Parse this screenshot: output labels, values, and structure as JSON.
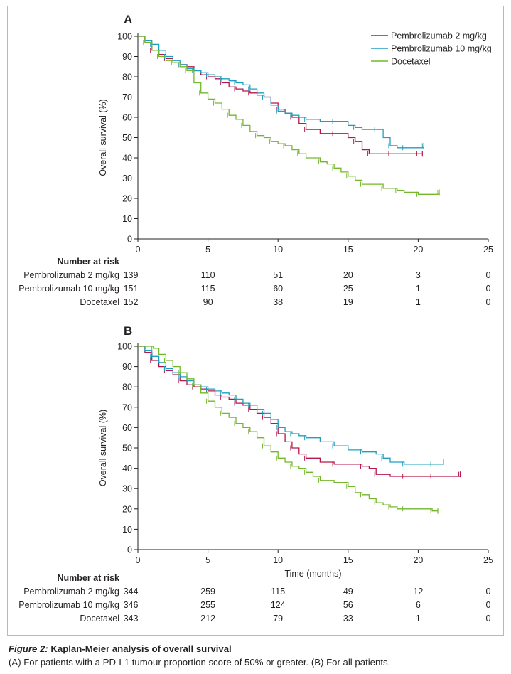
{
  "caption": {
    "label": "Figure 2:",
    "title": "Kaplan-Meier analysis of overall survival",
    "text": "(A) For patients with a PD-L1 tumour proportion score of 50% or greater. (B) For all patients."
  },
  "colors": {
    "pembro2": "#b5174b",
    "pembro10": "#1e9fc2",
    "docetaxel": "#74b72c",
    "axis": "#231f20"
  },
  "chart_data": [
    {
      "type": "line",
      "panel_label": "A",
      "ylabel": "Overall survival (%)",
      "xlabel": "",
      "xlim": [
        0,
        25
      ],
      "ylim": [
        0,
        100
      ],
      "x_ticks": [
        0,
        5,
        10,
        15,
        20,
        25
      ],
      "y_ticks": [
        0,
        10,
        20,
        30,
        40,
        50,
        60,
        70,
        80,
        90,
        100
      ],
      "legend": {
        "placement": "top-right"
      },
      "series": [
        {
          "name": "Pembrolizumab 2 mg/kg",
          "color_key": "pembro2",
          "x": [
            0,
            0.5,
            1,
            1.5,
            2,
            2.5,
            3,
            3.5,
            4,
            4.5,
            5,
            5.5,
            6,
            6.5,
            7,
            7.5,
            8,
            8.5,
            9,
            9.5,
            10,
            10.5,
            11,
            11.5,
            12,
            13,
            14,
            15,
            15.5,
            16,
            16.5,
            17,
            18,
            19,
            20,
            20.3
          ],
          "y": [
            100,
            97,
            93,
            91,
            89,
            87,
            86,
            85,
            83,
            81,
            80,
            79,
            77,
            75,
            74,
            73,
            72,
            71,
            70,
            67,
            64,
            62,
            60,
            57,
            54,
            52,
            52,
            50,
            48,
            44,
            42,
            42,
            42,
            42,
            42,
            42
          ]
        },
        {
          "name": "Pembrolizumab 10 mg/kg",
          "color_key": "pembro10",
          "x": [
            0,
            0.5,
            1,
            1.5,
            2,
            2.5,
            3,
            3.5,
            4,
            4.5,
            5,
            5.5,
            6,
            6.5,
            7,
            7.5,
            8,
            8.5,
            9,
            9.5,
            10,
            10.5,
            11,
            11.5,
            12,
            13,
            14,
            15,
            15.5,
            16,
            17,
            17.5,
            18,
            18.5,
            19,
            20,
            20.4
          ],
          "y": [
            100,
            98,
            96,
            93,
            90,
            88,
            86,
            84,
            83,
            82,
            81,
            80,
            79,
            78,
            77,
            76,
            74,
            72,
            70,
            66,
            63,
            62,
            61,
            60,
            59,
            58,
            58,
            56,
            55,
            54,
            54,
            50,
            46,
            45,
            45,
            45,
            46
          ]
        },
        {
          "name": "Docetaxel",
          "color_key": "docetaxel",
          "x": [
            0,
            0.4,
            0.5,
            1,
            1.5,
            2,
            2.5,
            3,
            3.5,
            4,
            4.5,
            5,
            5.5,
            6,
            6.5,
            7,
            7.5,
            8,
            8.5,
            9,
            9.5,
            10,
            10.5,
            11,
            11.5,
            12,
            13,
            13.5,
            14,
            14.5,
            15,
            15.5,
            16,
            17,
            17.5,
            18,
            18.5,
            19,
            20,
            21,
            21.5
          ],
          "y": [
            100,
            100,
            97,
            93,
            90,
            88,
            87,
            85,
            83,
            77,
            72,
            69,
            67,
            64,
            61,
            59,
            56,
            53,
            51,
            50,
            48,
            47,
            46,
            44,
            42,
            40,
            38,
            37,
            35,
            33,
            31,
            29,
            27,
            27,
            25,
            25,
            24,
            23,
            22,
            22,
            23
          ]
        }
      ],
      "number_at_risk": {
        "heading": "Number at risk",
        "time_points": [
          0,
          5,
          10,
          15,
          20,
          25
        ],
        "rows": [
          {
            "label": "Pembrolizumab 2 mg/kg",
            "values": [
              "139",
              "110",
              "51",
              "20",
              "3",
              "0"
            ]
          },
          {
            "label": "Pembrolizumab 10 mg/kg",
            "values": [
              "151",
              "115",
              "60",
              "25",
              "1",
              "0"
            ]
          },
          {
            "label": "Docetaxel",
            "values": [
              "152",
              "90",
              "38",
              "19",
              "1",
              "0"
            ]
          }
        ]
      }
    },
    {
      "type": "line",
      "panel_label": "B",
      "ylabel": "Overall survival (%)",
      "xlabel": "Time (months)",
      "xlim": [
        0,
        25
      ],
      "ylim": [
        0,
        100
      ],
      "x_ticks": [
        0,
        5,
        10,
        15,
        20,
        25
      ],
      "y_ticks": [
        0,
        10,
        20,
        30,
        40,
        50,
        60,
        70,
        80,
        90,
        100
      ],
      "series": [
        {
          "name": "Pembrolizumab 2 mg/kg",
          "color_key": "pembro2",
          "x": [
            0,
            0.5,
            1,
            1.5,
            2,
            2.5,
            3,
            3.5,
            4,
            4.5,
            5,
            5.5,
            6,
            6.5,
            7,
            7.5,
            8,
            8.5,
            9,
            9.5,
            10,
            10.5,
            11,
            11.5,
            12,
            13,
            14,
            15,
            16,
            16.5,
            17,
            18,
            19,
            20,
            21,
            22,
            23
          ],
          "y": [
            100,
            97,
            93,
            90,
            88,
            86,
            83,
            81,
            80,
            79,
            78,
            76,
            75,
            74,
            72,
            71,
            69,
            67,
            65,
            62,
            57,
            53,
            50,
            47,
            45,
            43,
            42,
            42,
            41,
            40,
            37,
            36,
            36,
            36,
            36,
            36,
            37
          ]
        },
        {
          "name": "Pembrolizumab 10 mg/kg",
          "color_key": "pembro10",
          "x": [
            0,
            0.5,
            1,
            1.5,
            2,
            2.5,
            3,
            3.5,
            4,
            4.5,
            5,
            5.5,
            6,
            6.5,
            7,
            7.5,
            8,
            8.5,
            9,
            9.5,
            10,
            10.5,
            11,
            11.5,
            12,
            13,
            14,
            15,
            16,
            17,
            17.5,
            18,
            19,
            20,
            21,
            21.8
          ],
          "y": [
            100,
            98,
            95,
            92,
            89,
            87,
            85,
            83,
            81,
            80,
            79,
            78,
            77,
            76,
            74,
            72,
            71,
            69,
            67,
            64,
            60,
            58,
            57,
            56,
            55,
            53,
            51,
            49,
            48,
            47,
            45,
            43,
            42,
            42,
            42,
            43
          ]
        },
        {
          "name": "Docetaxel",
          "color_key": "docetaxel",
          "x": [
            0,
            0.4,
            1.1,
            1.5,
            2,
            2.5,
            3,
            3.5,
            4,
            4.5,
            5,
            5.5,
            6,
            6.5,
            7,
            7.5,
            8,
            8.5,
            9,
            9.5,
            10,
            10.5,
            11,
            11.5,
            12,
            12.5,
            13,
            14,
            15,
            15.5,
            16,
            16.5,
            17,
            17.5,
            18,
            18.5,
            19,
            20,
            21,
            21.4
          ],
          "y": [
            100,
            100,
            99,
            96,
            93,
            90,
            87,
            84,
            81,
            77,
            73,
            70,
            67,
            65,
            62,
            60,
            58,
            55,
            51,
            48,
            45,
            43,
            41,
            40,
            38,
            36,
            34,
            33,
            31,
            28,
            27,
            25,
            23,
            22,
            21,
            20,
            20,
            20,
            19,
            19
          ]
        }
      ],
      "number_at_risk": {
        "heading": "Number at risk",
        "time_points": [
          0,
          5,
          10,
          15,
          20,
          25
        ],
        "rows": [
          {
            "label": "Pembrolizumab 2 mg/kg",
            "values": [
              "344",
              "259",
              "115",
              "49",
              "12",
              "0"
            ]
          },
          {
            "label": "Pembrolizumab 10 mg/kg",
            "values": [
              "346",
              "255",
              "124",
              "56",
              "6",
              "0"
            ]
          },
          {
            "label": "Docetaxel",
            "values": [
              "343",
              "212",
              "79",
              "33",
              "1",
              "0"
            ]
          }
        ]
      }
    }
  ]
}
